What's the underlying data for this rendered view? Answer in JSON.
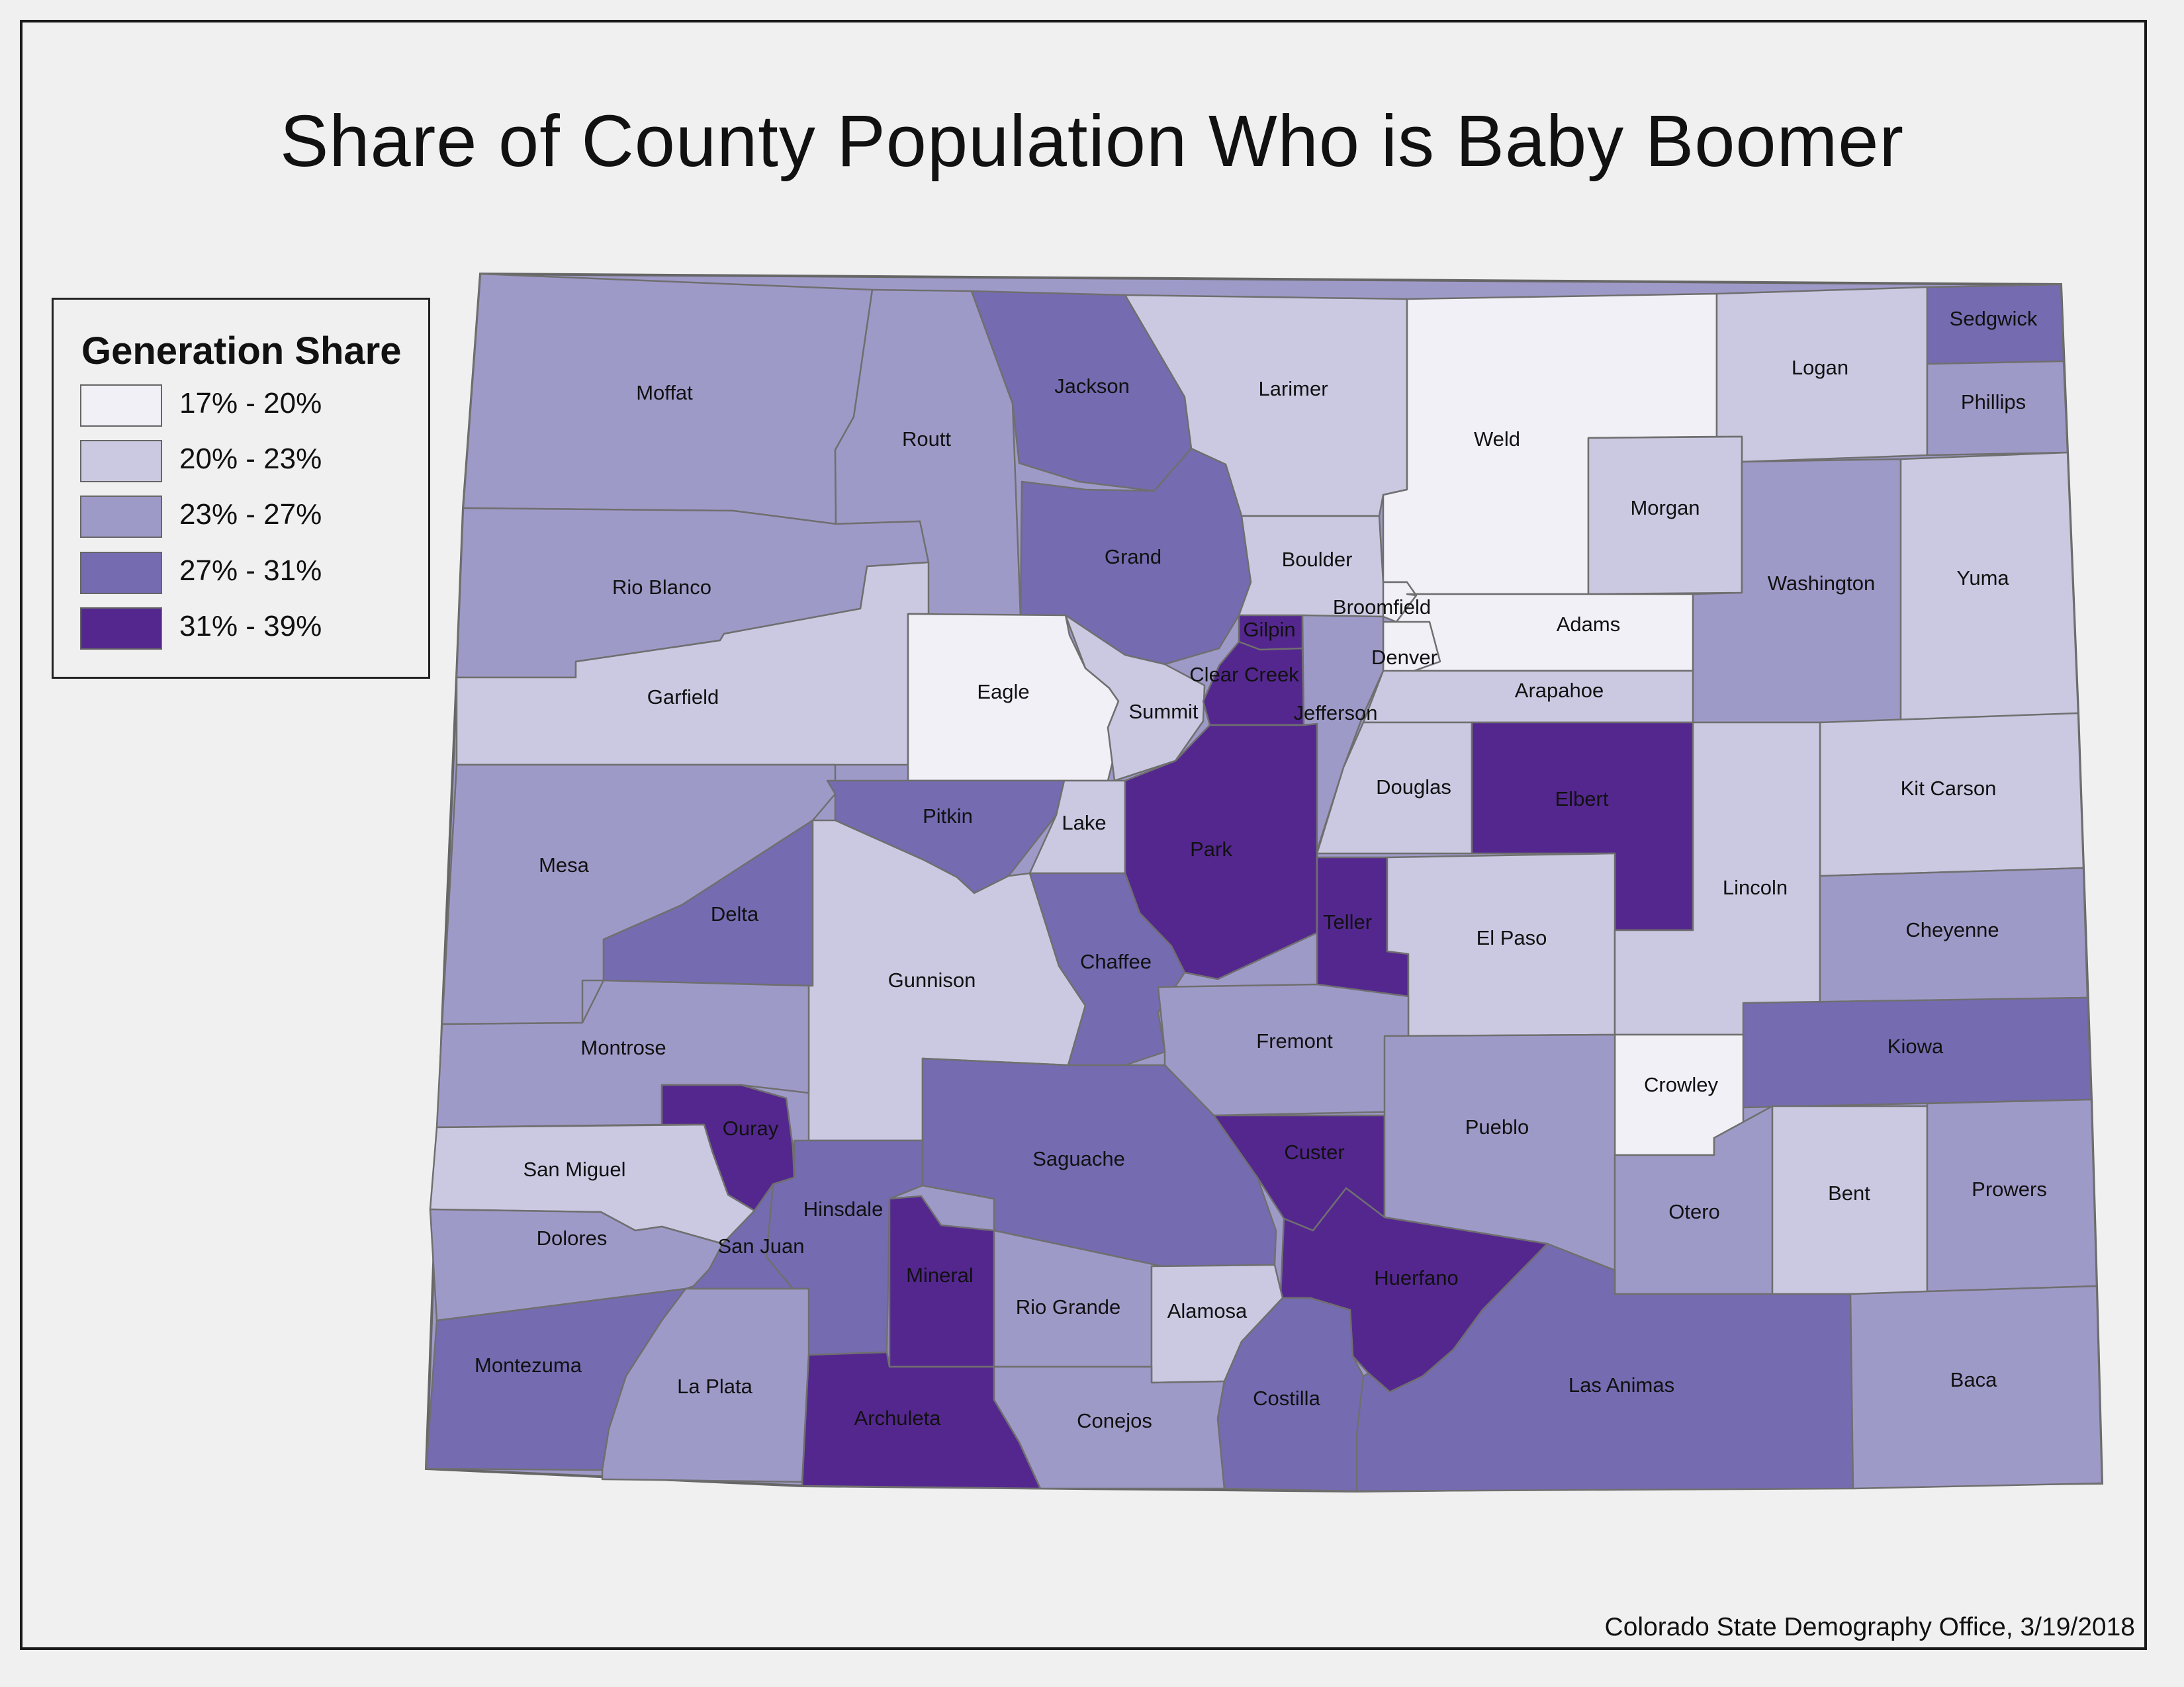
{
  "title": "Share of County Population Who is Baby Boomer",
  "credit": "Colorado State Demography Office, 3/19/2018",
  "legend": {
    "title": "Generation Share",
    "classes": [
      {
        "label": "17% - 20%",
        "color": "#f2f0f7"
      },
      {
        "label": "20% - 23%",
        "color": "#cbc9e2"
      },
      {
        "label": "23% - 27%",
        "color": "#9e9ac8"
      },
      {
        "label": "27% - 31%",
        "color": "#756bb1"
      },
      {
        "label": "31% - 39%",
        "color": "#54278f"
      }
    ]
  },
  "counties": [
    {
      "name": "Moffat",
      "class": 2
    },
    {
      "name": "Routt",
      "class": 2
    },
    {
      "name": "Jackson",
      "class": 3
    },
    {
      "name": "Larimer",
      "class": 1
    },
    {
      "name": "Weld",
      "class": 0
    },
    {
      "name": "Logan",
      "class": 1
    },
    {
      "name": "Sedgwick",
      "class": 3
    },
    {
      "name": "Phillips",
      "class": 2
    },
    {
      "name": "Rio Blanco",
      "class": 2
    },
    {
      "name": "Grand",
      "class": 3
    },
    {
      "name": "Boulder",
      "class": 1
    },
    {
      "name": "Morgan",
      "class": 1
    },
    {
      "name": "Washington",
      "class": 2
    },
    {
      "name": "Yuma",
      "class": 1
    },
    {
      "name": "Garfield",
      "class": 1
    },
    {
      "name": "Eagle",
      "class": 0
    },
    {
      "name": "Summit",
      "class": 1
    },
    {
      "name": "Gilpin",
      "class": 4
    },
    {
      "name": "Clear Creek",
      "class": 4
    },
    {
      "name": "Broomfield",
      "class": 0
    },
    {
      "name": "Adams",
      "class": 0
    },
    {
      "name": "Denver",
      "class": 0
    },
    {
      "name": "Jefferson",
      "class": 2
    },
    {
      "name": "Arapahoe",
      "class": 1
    },
    {
      "name": "Mesa",
      "class": 2
    },
    {
      "name": "Pitkin",
      "class": 3
    },
    {
      "name": "Lake",
      "class": 1
    },
    {
      "name": "Park",
      "class": 4
    },
    {
      "name": "Douglas",
      "class": 1
    },
    {
      "name": "Elbert",
      "class": 4
    },
    {
      "name": "Kit Carson",
      "class": 1
    },
    {
      "name": "Delta",
      "class": 3
    },
    {
      "name": "Gunnison",
      "class": 1
    },
    {
      "name": "Chaffee",
      "class": 3
    },
    {
      "name": "Teller",
      "class": 4
    },
    {
      "name": "El Paso",
      "class": 1
    },
    {
      "name": "Lincoln",
      "class": 1
    },
    {
      "name": "Cheyenne",
      "class": 2
    },
    {
      "name": "Montrose",
      "class": 2
    },
    {
      "name": "Fremont",
      "class": 2
    },
    {
      "name": "Kiowa",
      "class": 3
    },
    {
      "name": "Crowley",
      "class": 0
    },
    {
      "name": "Ouray",
      "class": 4
    },
    {
      "name": "San Miguel",
      "class": 1
    },
    {
      "name": "Saguache",
      "class": 3
    },
    {
      "name": "Custer",
      "class": 4
    },
    {
      "name": "Pueblo",
      "class": 2
    },
    {
      "name": "Otero",
      "class": 2
    },
    {
      "name": "Bent",
      "class": 1
    },
    {
      "name": "Prowers",
      "class": 2
    },
    {
      "name": "Hinsdale",
      "class": 3
    },
    {
      "name": "Dolores",
      "class": 2
    },
    {
      "name": "San Juan",
      "class": 3
    },
    {
      "name": "Mineral",
      "class": 4
    },
    {
      "name": "Huerfano",
      "class": 4
    },
    {
      "name": "Rio Grande",
      "class": 2
    },
    {
      "name": "Alamosa",
      "class": 1
    },
    {
      "name": "Montezuma",
      "class": 3
    },
    {
      "name": "La Plata",
      "class": 2
    },
    {
      "name": "Archuleta",
      "class": 4
    },
    {
      "name": "Conejos",
      "class": 2
    },
    {
      "name": "Costilla",
      "class": 3
    },
    {
      "name": "Las Animas",
      "class": 3
    },
    {
      "name": "Baca",
      "class": 2
    }
  ]
}
